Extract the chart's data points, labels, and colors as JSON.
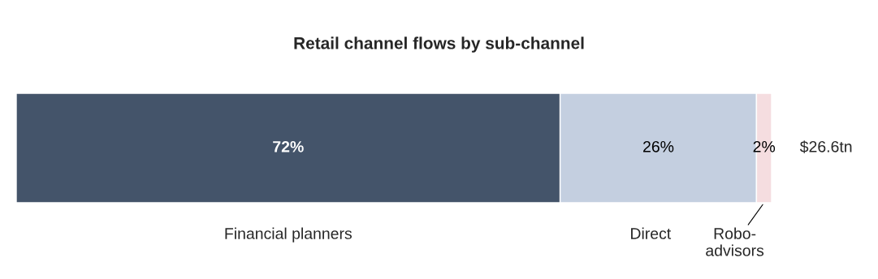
{
  "chart_data": {
    "type": "bar",
    "orientation": "horizontal",
    "stacked": true,
    "title": "Retail channel flows by sub-channel",
    "categories": [
      null
    ],
    "series": [
      {
        "name": "Financial planners",
        "color": "#44546a",
        "values": [
          72
        ],
        "value_labels": [
          "72%"
        ]
      },
      {
        "name": "Direct",
        "color": "#c4cfe0",
        "values": [
          26
        ],
        "value_labels": [
          "26%"
        ]
      },
      {
        "name": "Robo-\nadvisors",
        "color": "#f5dde0",
        "values": [
          2
        ],
        "value_labels": [
          "2%"
        ]
      }
    ],
    "annotations": [
      {
        "text": "$26.6tn",
        "x": 100
      }
    ],
    "legend": false
  }
}
